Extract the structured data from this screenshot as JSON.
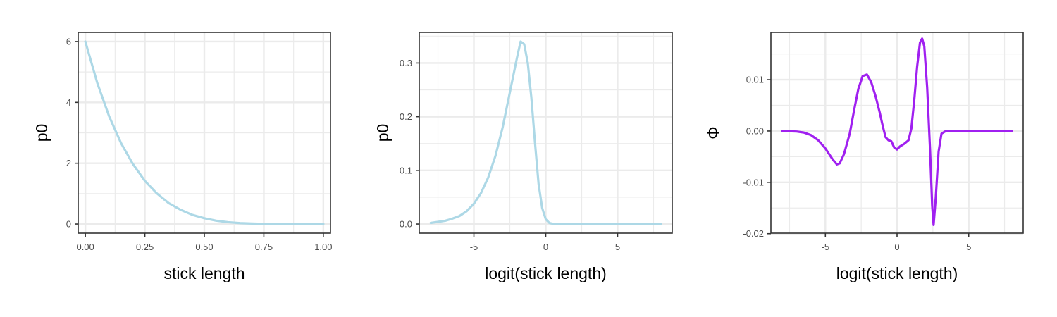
{
  "colors": {
    "background": "#ffffff",
    "grid": "#ebebeb",
    "panel_border": "#333333",
    "tick_label": "#4d4d4d",
    "p0_line": "#add8e6",
    "phi_line": "#a020f0"
  },
  "chart_data": [
    {
      "type": "line",
      "xlabel": "stick length",
      "ylabel": "p0",
      "xlim": [
        -0.03,
        1.03
      ],
      "ylim": [
        -0.3,
        6.3
      ],
      "x_ticks": [
        0,
        0.25,
        0.5,
        0.75,
        1
      ],
      "x_tick_labels": [
        "0.00",
        "0.25",
        "0.50",
        "0.75",
        "1.00"
      ],
      "y_ticks": [
        0,
        2,
        4,
        6
      ],
      "y_tick_labels": [
        "0",
        "2",
        "4",
        "6"
      ],
      "grid": true,
      "series": [
        {
          "color": "#add8e6",
          "x": [
            0,
            0.05,
            0.1,
            0.15,
            0.2,
            0.25,
            0.3,
            0.35,
            0.4,
            0.45,
            0.5,
            0.55,
            0.6,
            0.65,
            0.7,
            0.75,
            0.8,
            0.85,
            0.9,
            0.95,
            1
          ],
          "y": [
            6.0,
            4.64,
            3.54,
            2.66,
            1.97,
            1.42,
            1.01,
            0.69,
            0.47,
            0.3,
            0.19,
            0.11,
            0.06,
            0.03,
            0.015,
            0.006,
            0.002,
            0.0005,
            0.0001,
            0,
            0
          ]
        }
      ]
    },
    {
      "type": "line",
      "xlabel": "logit(stick length)",
      "ylabel": "p0",
      "xlim": [
        -8.8,
        8.8
      ],
      "ylim": [
        -0.017,
        0.357
      ],
      "x_ticks": [
        -5,
        0,
        5
      ],
      "x_tick_labels": [
        "-5",
        "0",
        "5"
      ],
      "y_ticks": [
        0,
        0.1,
        0.2,
        0.3
      ],
      "y_tick_labels": [
        "0.0",
        "0.1",
        "0.2",
        "0.3"
      ],
      "grid": true,
      "series": [
        {
          "color": "#add8e6",
          "x": [
            -8,
            -7.5,
            -7,
            -6.5,
            -6,
            -5.5,
            -5,
            -4.5,
            -4,
            -3.5,
            -3,
            -2.5,
            -2,
            -1.75,
            -1.5,
            -1.25,
            -1,
            -0.75,
            -0.5,
            -0.25,
            0,
            0.25,
            0.5,
            0.75,
            1,
            1.5,
            2,
            3,
            4,
            5,
            6,
            7,
            8
          ],
          "y": [
            0.002,
            0.004,
            0.006,
            0.01,
            0.015,
            0.024,
            0.038,
            0.058,
            0.087,
            0.127,
            0.18,
            0.245,
            0.31,
            0.34,
            0.335,
            0.3,
            0.235,
            0.152,
            0.075,
            0.03,
            0.009,
            0.002,
            0.0005,
            0.0001,
            0,
            0,
            0,
            0,
            0,
            0,
            0,
            0,
            0
          ]
        }
      ]
    },
    {
      "type": "line",
      "xlabel": "logit(stick length)",
      "ylabel": "Φ",
      "xlim": [
        -8.8,
        8.8
      ],
      "ylim": [
        -0.0199,
        0.0192
      ],
      "x_ticks": [
        -5,
        0,
        5
      ],
      "x_tick_labels": [
        "-5",
        "0",
        "5"
      ],
      "y_ticks": [
        -0.02,
        -0.01,
        0,
        0.01
      ],
      "y_tick_labels": [
        "-0.02",
        "-0.01",
        "0.00",
        "0.01"
      ],
      "grid": true,
      "series": [
        {
          "color": "#a020f0",
          "x": [
            -8,
            -7,
            -6.5,
            -6,
            -5.5,
            -5,
            -4.5,
            -4.2,
            -4,
            -3.7,
            -3.3,
            -3,
            -2.7,
            -2.4,
            -2.1,
            -1.8,
            -1.5,
            -1.2,
            -1,
            -0.8,
            -0.6,
            -0.4,
            -0.2,
            0,
            0.2,
            0.5,
            0.8,
            1,
            1.2,
            1.4,
            1.6,
            1.75,
            1.9,
            2.1,
            2.3,
            2.45,
            2.55,
            2.7,
            2.9,
            3.1,
            3.4,
            3.7,
            4,
            5,
            6,
            7,
            8
          ],
          "y": [
            0,
            -0.0001,
            -0.0003,
            -0.0008,
            -0.0018,
            -0.0034,
            -0.0055,
            -0.0065,
            -0.0063,
            -0.0045,
            -0.0005,
            0.004,
            0.0082,
            0.0107,
            0.011,
            0.0095,
            0.0068,
            0.0035,
            0.001,
            -0.0012,
            -0.0018,
            -0.002,
            -0.0032,
            -0.0036,
            -0.003,
            -0.0025,
            -0.0018,
            0.0005,
            0.006,
            0.0125,
            0.0172,
            0.018,
            0.0165,
            0.0085,
            -0.0035,
            -0.0145,
            -0.0183,
            -0.013,
            -0.004,
            -0.0005,
            0,
            0,
            0,
            0,
            0,
            0,
            0
          ]
        }
      ]
    }
  ]
}
